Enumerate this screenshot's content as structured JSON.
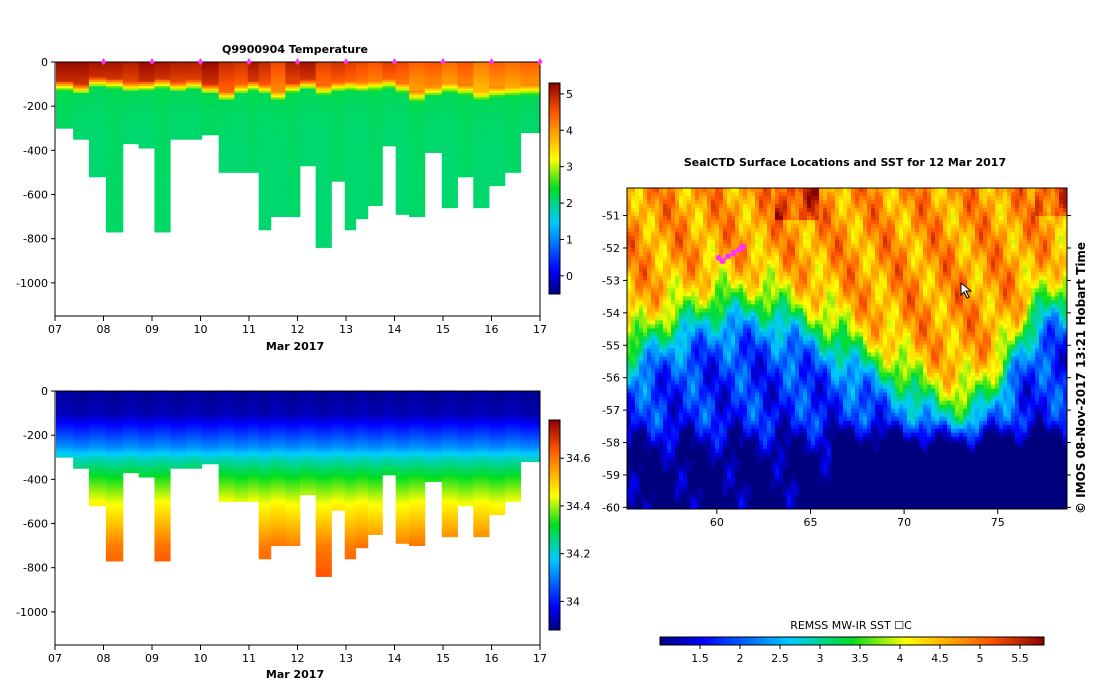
{
  "chart_data": [
    {
      "type": "heatmap",
      "title": "Q9900904  Temperature",
      "xlabel": "Mar 2017",
      "ylabel": "",
      "x_tick_labels": [
        "07",
        "08",
        "09",
        "10",
        "11",
        "12",
        "13",
        "14",
        "15",
        "16",
        "17"
      ],
      "x_ticks_days": [
        7,
        8,
        9,
        10,
        11,
        12,
        13,
        14,
        15,
        16,
        17
      ],
      "xlim_days": [
        7,
        17
      ],
      "y_tick_labels": [
        "0",
        "-200",
        "-400",
        "-600",
        "-800",
        "-1000"
      ],
      "y_ticks": [
        0,
        -200,
        -400,
        -600,
        -800,
        -1000
      ],
      "ylim": [
        -1150,
        0
      ],
      "colorbar": {
        "ticks": [
          0,
          1,
          2,
          3,
          4,
          5
        ],
        "tick_labels": [
          "0",
          "1",
          "2",
          "3",
          "4",
          "5"
        ],
        "range": [
          -0.5,
          5.3
        ]
      },
      "profile_times_days": [
        7.2,
        7.55,
        7.85,
        8.25,
        8.55,
        8.9,
        9.2,
        9.55,
        9.85,
        10.2,
        10.55,
        10.85,
        11.1,
        11.3,
        11.6,
        11.9,
        12.2,
        12.55,
        12.85,
        13.1,
        13.3,
        13.6,
        13.9,
        14.15,
        14.45,
        14.8,
        15.15,
        15.45,
        15.8,
        16.1,
        16.45,
        16.75
      ],
      "profile_max_depth_m": [
        300,
        350,
        520,
        770,
        370,
        390,
        770,
        350,
        350,
        330,
        500,
        500,
        500,
        760,
        700,
        700,
        470,
        840,
        540,
        760,
        710,
        650,
        380,
        690,
        700,
        410,
        660,
        520,
        660,
        560,
        500,
        320
      ],
      "profile_surface_temp": [
        5.2,
        5.2,
        5.1,
        5.1,
        5.0,
        5.2,
        5.1,
        5.0,
        5.0,
        5.2,
        4.9,
        4.8,
        5.1,
        4.9,
        4.6,
        5.0,
        5.1,
        4.7,
        4.8,
        4.7,
        4.6,
        4.5,
        4.7,
        4.6,
        4.4,
        4.5,
        4.3,
        4.5,
        4.2,
        4.4,
        4.3,
        4.4
      ],
      "profile_mixed_layer_depth_m": [
        105,
        120,
        90,
        95,
        110,
        105,
        95,
        110,
        100,
        120,
        150,
        120,
        105,
        120,
        150,
        115,
        100,
        125,
        110,
        105,
        110,
        105,
        95,
        115,
        155,
        130,
        115,
        125,
        150,
        135,
        130,
        125
      ],
      "deep_temp": 2.1,
      "marker_times_days": [
        8,
        9,
        10,
        11,
        12,
        13,
        14,
        15,
        16,
        17
      ]
    },
    {
      "type": "heatmap",
      "title": "",
      "xlabel": "Mar 2017",
      "ylabel": "",
      "x_tick_labels": [
        "07",
        "08",
        "09",
        "10",
        "11",
        "12",
        "13",
        "14",
        "15",
        "16",
        "17"
      ],
      "x_ticks_days": [
        7,
        8,
        9,
        10,
        11,
        12,
        13,
        14,
        15,
        16,
        17
      ],
      "xlim_days": [
        7,
        17
      ],
      "y_tick_labels": [
        "0",
        "-200",
        "-400",
        "-600",
        "-800",
        "-1000"
      ],
      "y_ticks": [
        0,
        -200,
        -400,
        -600,
        -800,
        -1000
      ],
      "ylim": [
        -1150,
        0
      ],
      "colorbar": {
        "ticks": [
          34.0,
          34.2,
          34.4,
          34.6
        ],
        "tick_labels": [
          "34",
          "34.2",
          "34.4",
          "34.6"
        ],
        "range": [
          33.88,
          34.76
        ]
      },
      "salinity_profile": {
        "depths_m": [
          0,
          100,
          200,
          250,
          300,
          400,
          500,
          600,
          700,
          850
        ],
        "values": [
          33.9,
          33.92,
          34.05,
          34.12,
          34.22,
          34.34,
          34.44,
          34.52,
          34.6,
          34.65
        ]
      }
    },
    {
      "type": "heatmap",
      "title": "SealCTD Surface Locations and SST for 12 Mar 2017",
      "xlabel": "",
      "ylabel": "",
      "x_tick_labels": [
        "60",
        "65",
        "70",
        "75"
      ],
      "x_ticks": [
        60,
        65,
        70,
        75
      ],
      "xlim": [
        55.2,
        78.7
      ],
      "y_tick_labels": [
        "-51",
        "-52",
        "-53",
        "-54",
        "-55",
        "-56",
        "-57",
        "-58",
        "-59",
        "-60"
      ],
      "y_ticks": [
        -51,
        -52,
        -53,
        -54,
        -55,
        -56,
        -57,
        -58,
        -59,
        -60
      ],
      "ylim": [
        -60.05,
        -50.15
      ],
      "colorbar": {
        "label": "REMSS MW-IR SST ☐C",
        "ticks": [
          1.5,
          2,
          2.5,
          3,
          3.5,
          4,
          4.5,
          5,
          5.5
        ],
        "tick_labels": [
          "1.5",
          "2",
          "2.5",
          "3",
          "3.5",
          "4",
          "4.5",
          "5",
          "5.5"
        ],
        "range": [
          1.0,
          5.8
        ]
      },
      "seal_track_lon": [
        60.1,
        60.3,
        60.6,
        60.9,
        61.2,
        61.4
      ],
      "seal_track_lat": [
        -52.3,
        -52.4,
        -52.25,
        -52.15,
        -52.05,
        -51.95
      ],
      "side_label": "©  IMOS 08-Nov-2017 13:21 Hobart Time"
    }
  ],
  "colors": {
    "track_marker": "#ff33ff",
    "background": "#ffffff"
  }
}
